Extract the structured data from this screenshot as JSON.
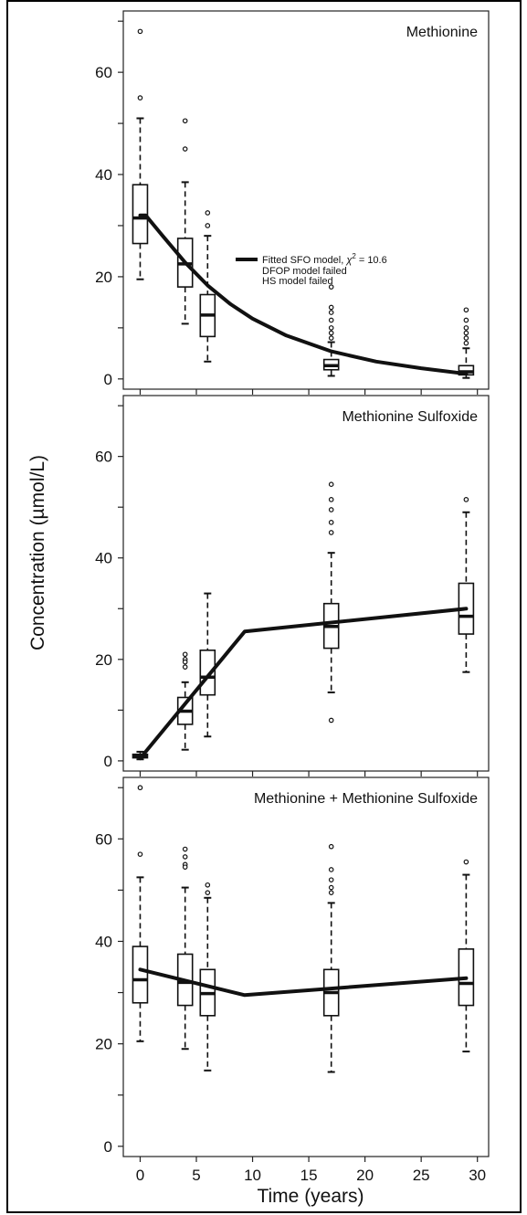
{
  "chart_data": {
    "type": "box-with-line",
    "ylabel": "Concentration (µmol/L)",
    "xlabel": "Time (years)",
    "xlim": [
      -1.5,
      31
    ],
    "ylim": [
      -2,
      72
    ],
    "xticks": [
      "0",
      "5",
      "10",
      "15",
      "20",
      "25",
      "30"
    ],
    "yticks": [
      "0",
      "20",
      "40",
      "60"
    ],
    "panels": [
      {
        "title": "Methionine",
        "legend": {
          "line1_prefix": "Fitted SFO model, ",
          "chi_symbol": "χ",
          "chi_exp": "2",
          "line1_suffix": " = 10.6",
          "line2": "DFOP model failed",
          "line3": "HS model failed"
        },
        "boxes": [
          {
            "x": 0,
            "low": 19.5,
            "q1": 26.5,
            "median": 31.5,
            "q3": 38,
            "high": 51,
            "outliers": [
              68,
              55
            ]
          },
          {
            "x": 4,
            "low": 10.8,
            "q1": 18,
            "median": 22.5,
            "q3": 27.5,
            "high": 38.5,
            "outliers": [
              50.5,
              45
            ]
          },
          {
            "x": 6,
            "low": 3.4,
            "q1": 8.3,
            "median": 12.5,
            "q3": 16.5,
            "high": 28,
            "outliers": [
              32.5,
              30
            ]
          },
          {
            "x": 17,
            "low": 0.6,
            "q1": 1.8,
            "median": 2.6,
            "q3": 3.8,
            "high": 7.2,
            "outliers": [
              18,
              14,
              13,
              11.5,
              10,
              9,
              8
            ]
          },
          {
            "x": 29,
            "low": 0.2,
            "q1": 0.8,
            "median": 1.4,
            "q3": 2.6,
            "high": 6,
            "outliers": [
              13.5,
              11.5,
              10,
              9,
              8,
              7
            ]
          }
        ],
        "line": {
          "x": [
            0,
            0.5,
            2,
            4,
            6,
            8,
            10,
            13,
            17,
            21,
            25,
            29
          ],
          "y": [
            32,
            32,
            28,
            22.8,
            18.3,
            14.7,
            11.8,
            8.5,
            5.4,
            3.4,
            2.1,
            1.0
          ]
        }
      },
      {
        "title": "Methionine Sulfoxide",
        "boxes": [
          {
            "x": 0,
            "low": 0.3,
            "q1": 0.6,
            "median": 0.9,
            "q3": 1.3,
            "high": 1.8,
            "outliers": []
          },
          {
            "x": 4,
            "low": 2.2,
            "q1": 7.2,
            "median": 9.8,
            "q3": 12.5,
            "high": 15.5,
            "outliers": [
              21,
              20,
              19.5,
              18.5
            ]
          },
          {
            "x": 6,
            "low": 4.8,
            "q1": 13,
            "median": 16.5,
            "q3": 21.8,
            "high": 33,
            "outliers": []
          },
          {
            "x": 17,
            "low": 13.5,
            "q1": 22.2,
            "median": 26.5,
            "q3": 31,
            "high": 41,
            "outliers": [
              54.5,
              51.5,
              49.5,
              47,
              45,
              8
            ]
          },
          {
            "x": 29,
            "low": 17.5,
            "q1": 25,
            "median": 28.5,
            "q3": 35,
            "high": 49,
            "outliers": [
              51.5
            ]
          }
        ],
        "line": {
          "x": [
            0,
            9.3,
            29
          ],
          "y": [
            0.5,
            25.5,
            30
          ]
        }
      },
      {
        "title": "Methionine + Methionine Sulfoxide",
        "boxes": [
          {
            "x": 0,
            "low": 20.5,
            "q1": 28,
            "median": 32.5,
            "q3": 39,
            "high": 52.5,
            "outliers": [
              70,
              57
            ]
          },
          {
            "x": 4,
            "low": 19,
            "q1": 27.5,
            "median": 32,
            "q3": 37.5,
            "high": 50.5,
            "outliers": [
              58,
              56.5,
              55,
              54.5
            ]
          },
          {
            "x": 6,
            "low": 14.8,
            "q1": 25.5,
            "median": 29.8,
            "q3": 34.5,
            "high": 48.5,
            "outliers": [
              51,
              49.5
            ]
          },
          {
            "x": 17,
            "low": 14.5,
            "q1": 25.5,
            "median": 30,
            "q3": 34.5,
            "high": 47.5,
            "outliers": [
              58.5,
              54,
              52,
              50.5,
              49.5
            ]
          },
          {
            "x": 29,
            "low": 18.5,
            "q1": 27.5,
            "median": 31.8,
            "q3": 38.5,
            "high": 53,
            "outliers": [
              55.5
            ]
          }
        ],
        "line": {
          "x": [
            0,
            9.3,
            29
          ],
          "y": [
            34.5,
            29.5,
            32.8
          ]
        }
      }
    ]
  }
}
